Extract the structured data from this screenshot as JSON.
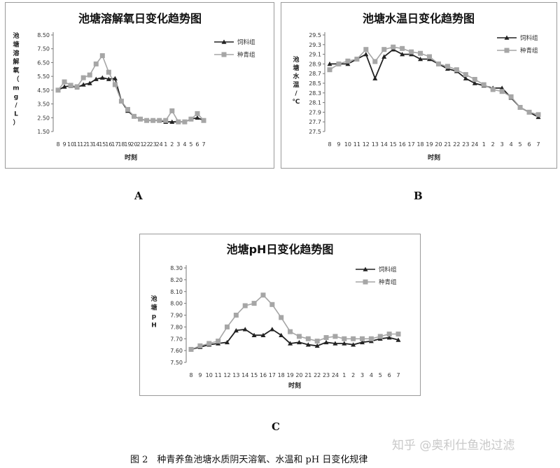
{
  "figure": {
    "caption": "图 2　种青养鱼池塘水质阴天溶氧、水温和 pH 日变化规律",
    "watermark": "知乎 @奥利仕鱼池过滤",
    "panel_letters": [
      "A",
      "B",
      "C"
    ]
  },
  "chart_data": [
    {
      "type": "line",
      "title": "池塘溶解氧日变化趋势图",
      "xlabel": "时刻",
      "ylabel": "池塘溶解氧（mg/L）",
      "categories": [
        "8",
        "9",
        "10",
        "11",
        "12",
        "13",
        "14",
        "15",
        "16",
        "17",
        "18",
        "19",
        "20",
        "21",
        "22",
        "23",
        "24",
        "1",
        "2",
        "3",
        "4",
        "5",
        "6",
        "7"
      ],
      "yticks": [
        "1.50",
        "2.50",
        "3.50",
        "4.50",
        "5.50",
        "6.50",
        "7.50",
        "8.50"
      ],
      "ylim": [
        1.5,
        8.5
      ],
      "legend": "top-right",
      "grid": false,
      "series": [
        {
          "name": "饲料组",
          "marker": "triangle",
          "color": "#222222",
          "values": [
            4.5,
            4.75,
            4.8,
            4.7,
            4.9,
            5.0,
            5.3,
            5.4,
            5.3,
            5.35,
            3.7,
            3.0,
            2.6,
            2.4,
            2.3,
            2.3,
            2.3,
            2.2,
            2.2,
            2.2,
            2.2,
            2.4,
            2.5,
            2.3
          ]
        },
        {
          "name": "种青组",
          "marker": "square",
          "color": "#a6a6a6",
          "values": [
            4.5,
            5.1,
            4.85,
            4.75,
            5.4,
            5.6,
            6.4,
            7.0,
            5.8,
            4.9,
            3.7,
            3.1,
            2.6,
            2.4,
            2.3,
            2.3,
            2.3,
            2.3,
            3.0,
            2.2,
            2.2,
            2.4,
            2.8,
            2.3
          ]
        }
      ]
    },
    {
      "type": "line",
      "title": "池塘水温日变化趋势图",
      "xlabel": "时刻",
      "ylabel": "池塘水温/℃",
      "categories": [
        "8",
        "9",
        "10",
        "11",
        "12",
        "13",
        "14",
        "15",
        "16",
        "17",
        "18",
        "19",
        "20",
        "21",
        "22",
        "23",
        "24",
        "1",
        "2",
        "3",
        "4",
        "5",
        "6",
        "7"
      ],
      "yticks": [
        "27.5",
        "27.7",
        "27.9",
        "28.1",
        "28.3",
        "28.5",
        "28.7",
        "28.9",
        "29.1",
        "29.3",
        "29.5"
      ],
      "ylim": [
        27.5,
        29.5
      ],
      "legend": "top-right",
      "grid": false,
      "series": [
        {
          "name": "饲料组",
          "marker": "triangle",
          "color": "#222222",
          "values": [
            28.9,
            28.9,
            28.9,
            29.0,
            29.1,
            28.6,
            29.05,
            29.2,
            29.1,
            29.1,
            29.0,
            29.0,
            28.9,
            28.8,
            28.75,
            28.6,
            28.5,
            28.45,
            28.4,
            28.4,
            28.2,
            28.0,
            27.9,
            27.8
          ]
        },
        {
          "name": "种青组",
          "marker": "square",
          "color": "#a6a6a6",
          "values": [
            28.78,
            28.9,
            28.96,
            29.0,
            29.2,
            28.95,
            29.2,
            29.25,
            29.22,
            29.15,
            29.12,
            29.05,
            28.9,
            28.85,
            28.78,
            28.68,
            28.58,
            28.47,
            28.37,
            28.33,
            28.22,
            28.0,
            27.9,
            27.85
          ]
        }
      ]
    },
    {
      "type": "line",
      "title": "池塘pH日变化趋势图",
      "xlabel": "时刻",
      "ylabel": "池塘pH",
      "categories": [
        "8",
        "9",
        "10",
        "11",
        "12",
        "13",
        "14",
        "15",
        "16",
        "17",
        "18",
        "19",
        "20",
        "21",
        "22",
        "23",
        "24",
        "1",
        "2",
        "3",
        "4",
        "5",
        "6",
        "7"
      ],
      "yticks": [
        "7.50",
        "7.60",
        "7.70",
        "7.80",
        "7.90",
        "8.00",
        "8.10",
        "8.20",
        "8.30"
      ],
      "ylim": [
        7.5,
        8.3
      ],
      "legend": "top-right",
      "grid": false,
      "series": [
        {
          "name": "饲料组",
          "marker": "triangle",
          "color": "#222222",
          "values": [
            7.61,
            7.63,
            7.65,
            7.66,
            7.67,
            7.77,
            7.78,
            7.73,
            7.73,
            7.78,
            7.73,
            7.66,
            7.67,
            7.65,
            7.64,
            7.67,
            7.66,
            7.66,
            7.65,
            7.67,
            7.68,
            7.7,
            7.71,
            7.69
          ]
        },
        {
          "name": "种青组",
          "marker": "square",
          "color": "#a6a6a6",
          "values": [
            7.61,
            7.64,
            7.66,
            7.68,
            7.8,
            7.9,
            7.98,
            8.0,
            8.07,
            7.99,
            7.88,
            7.76,
            7.72,
            7.7,
            7.68,
            7.71,
            7.72,
            7.7,
            7.7,
            7.7,
            7.7,
            7.72,
            7.74,
            7.74
          ]
        }
      ]
    }
  ]
}
